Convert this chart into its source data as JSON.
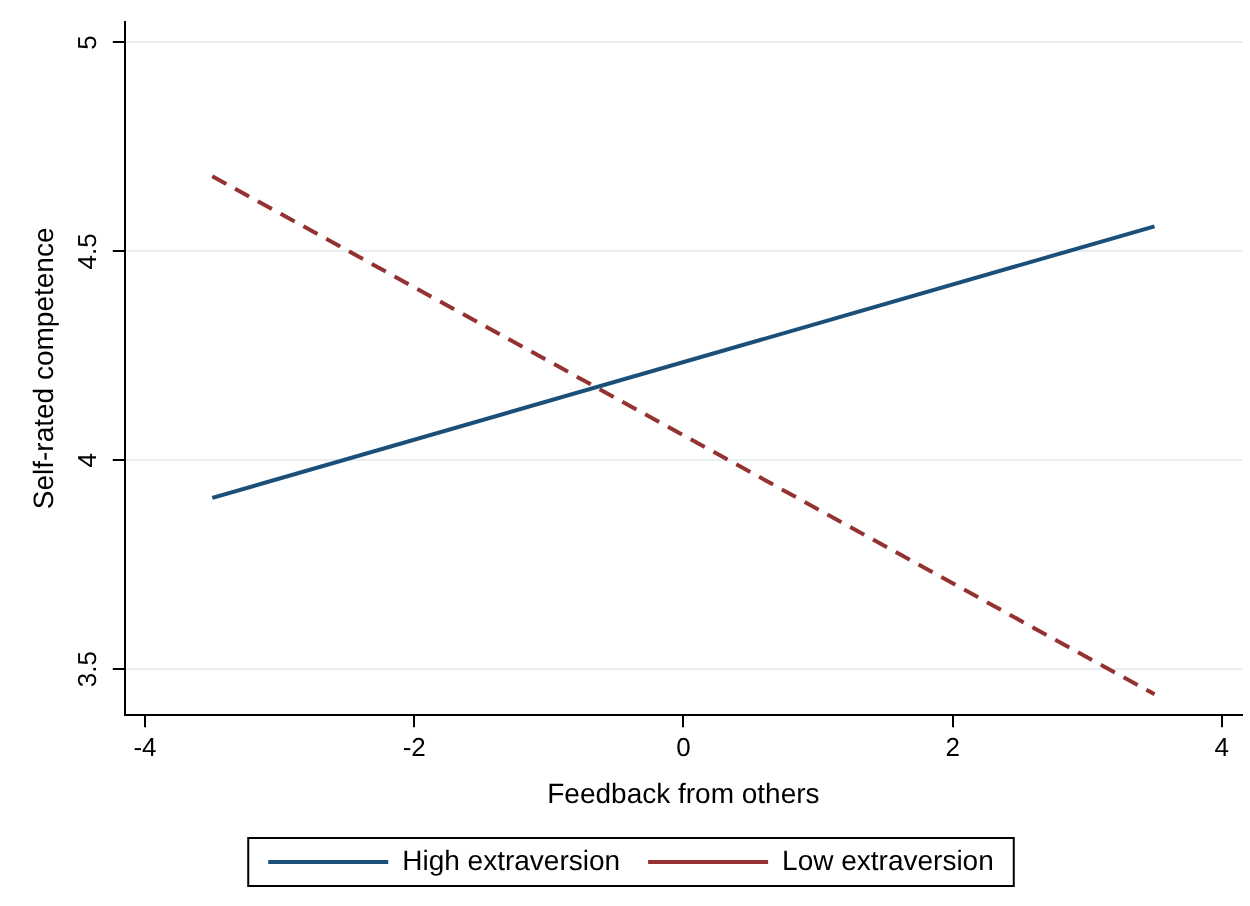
{
  "chart_data": {
    "type": "line",
    "xlabel": "Feedback from others",
    "ylabel": "Self-rated competence",
    "x": [
      -3.5,
      3.5
    ],
    "series": [
      {
        "name": "High extraversion",
        "color": "#1a4f7a",
        "values": [
          3.91,
          4.56
        ],
        "line_style": "solid"
      },
      {
        "name": "Low extraversion",
        "color": "#943232",
        "values": [
          4.68,
          3.44
        ],
        "line_style": "dashed"
      }
    ],
    "xlim": [
      -4.15,
      4.15
    ],
    "xticks": [
      -4,
      -2,
      0,
      2,
      4
    ],
    "ylim": [
      3.39,
      5.05
    ],
    "yticks": [
      3.5,
      4,
      4.5,
      5
    ],
    "grid": "y",
    "legend": "bottom",
    "marker": "none"
  }
}
